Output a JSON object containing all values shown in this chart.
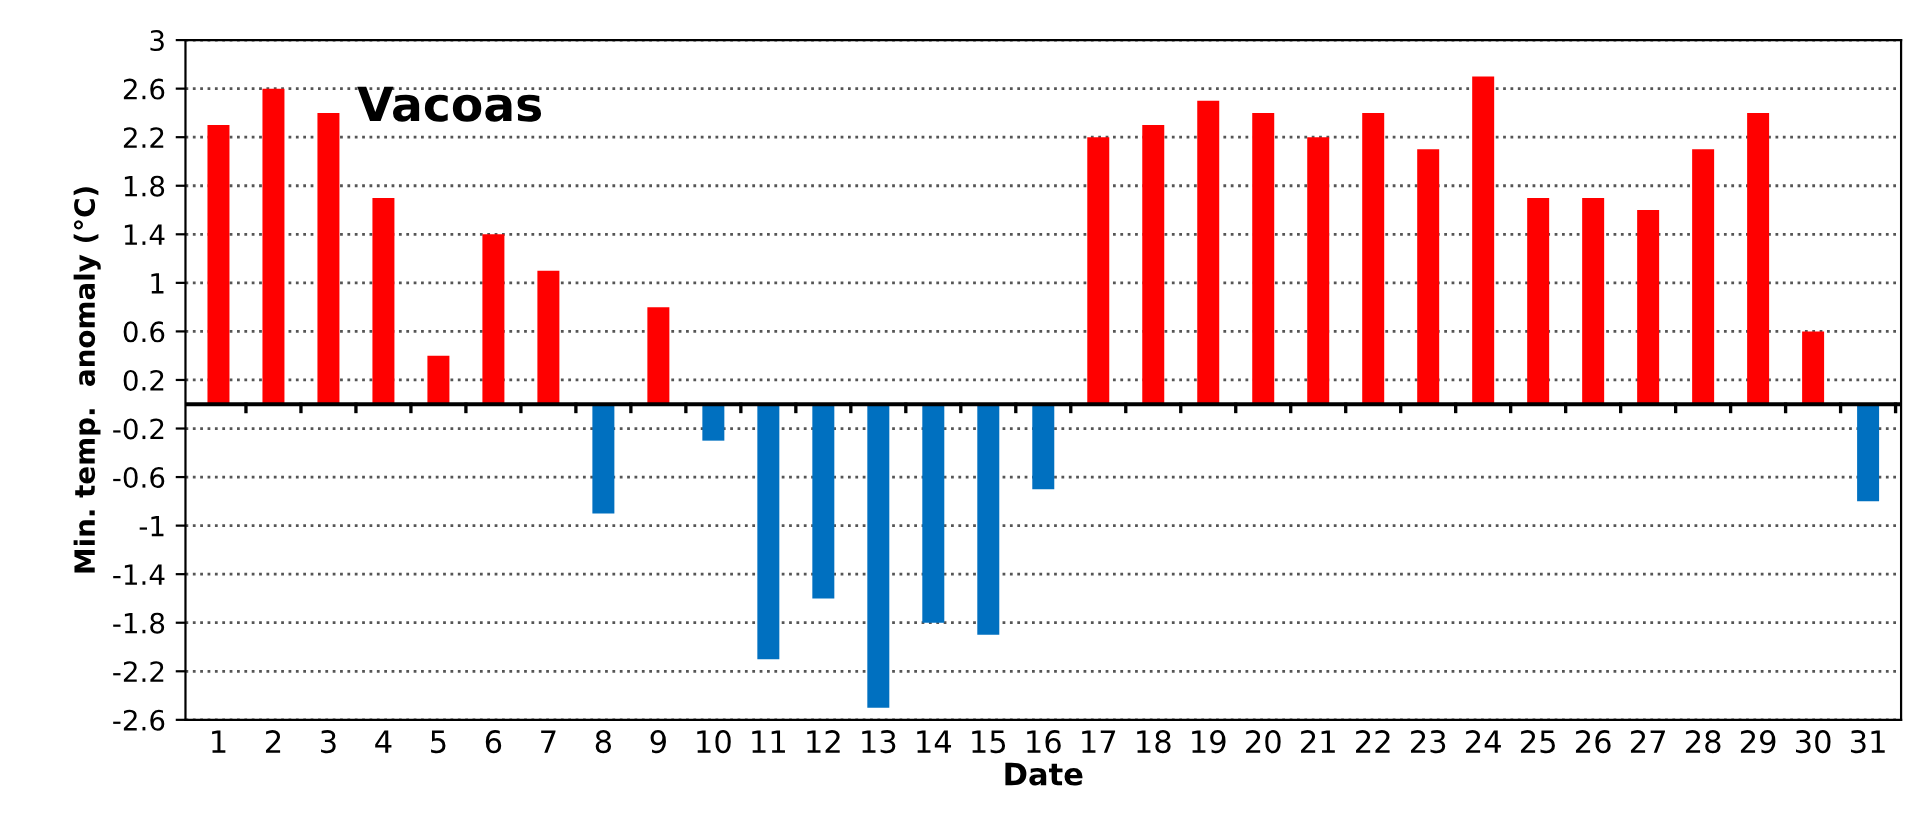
{
  "chart_data": {
    "type": "bar",
    "title": "Vacoas",
    "xlabel": "Date",
    "ylabel": "Min. temp.  anomaly (°C)",
    "categories": [
      "1",
      "2",
      "3",
      "4",
      "5",
      "6",
      "7",
      "8",
      "9",
      "10",
      "11",
      "12",
      "13",
      "14",
      "15",
      "16",
      "17",
      "18",
      "19",
      "20",
      "21",
      "22",
      "23",
      "24",
      "25",
      "26",
      "27",
      "28",
      "29",
      "30",
      "31"
    ],
    "values": [
      2.3,
      2.6,
      2.4,
      1.7,
      0.4,
      1.4,
      1.1,
      -0.9,
      0.8,
      -0.3,
      -2.1,
      -1.6,
      -2.5,
      -1.8,
      -1.9,
      -0.7,
      2.2,
      2.3,
      2.5,
      2.4,
      2.2,
      2.4,
      2.1,
      2.7,
      1.7,
      1.7,
      1.6,
      2.1,
      2.4,
      0.6,
      -0.8
    ],
    "colors": [
      "#ff0000",
      "#ff0000",
      "#ff0000",
      "#ff0000",
      "#ff0000",
      "#ff0000",
      "#ff0000",
      "#0070c0",
      "#ff0000",
      "#0070c0",
      "#0070c0",
      "#0070c0",
      "#0070c0",
      "#0070c0",
      "#0070c0",
      "#0070c0",
      "#ff0000",
      "#ff0000",
      "#ff0000",
      "#ff0000",
      "#ff0000",
      "#ff0000",
      "#ff0000",
      "#ff0000",
      "#ff0000",
      "#ff0000",
      "#ff0000",
      "#ff0000",
      "#ff0000",
      "#ff0000",
      "#0070c0"
    ],
    "ylim": [
      -2.6,
      3
    ],
    "yticks": [
      3,
      2.6,
      2.2,
      1.8,
      1.4,
      1,
      0.6,
      0.2,
      -0.2,
      -0.6,
      -1,
      -1.4,
      -1.8,
      -2.2,
      -2.6
    ],
    "ref_lines": [
      {
        "axis": "y",
        "value": 0,
        "color": "#000000"
      }
    ],
    "grid": "y"
  }
}
